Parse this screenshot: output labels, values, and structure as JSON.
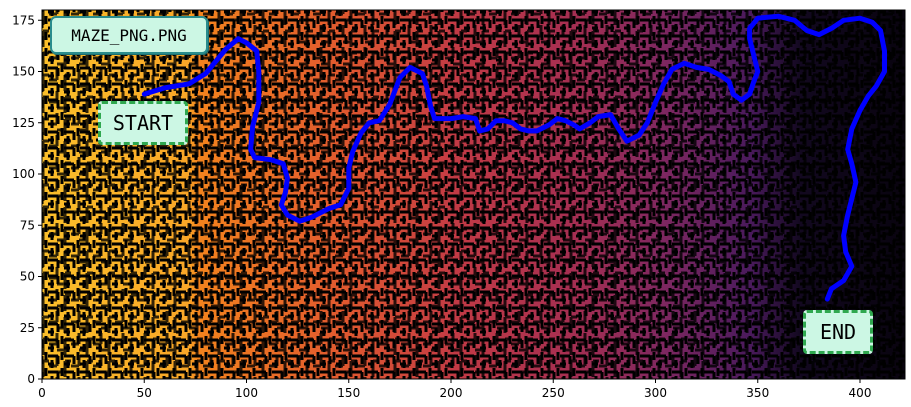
{
  "figure": {
    "title_badge": "MAZE_PNG.PNG",
    "start_label": "START",
    "end_label": "END"
  },
  "chart_data": {
    "type": "heatmap",
    "description_of_content": "maze image with colored cells and solution path",
    "xlim": [
      0,
      422
    ],
    "ylim": [
      0,
      180
    ],
    "x_ticks": [
      0,
      50,
      100,
      150,
      200,
      250,
      300,
      350,
      400
    ],
    "y_ticks": [
      0,
      25,
      50,
      75,
      100,
      125,
      150,
      175
    ],
    "colormap": [
      "#fbbf2a",
      "#f3831d",
      "#d6483a",
      "#b7334b",
      "#8e2a5e",
      "#5e1f66",
      "#2c1450",
      "#0b0617"
    ],
    "path_color": "#0000ff",
    "wall_color": "#000000",
    "solution_path": [
      [
        50,
        139
      ],
      [
        60,
        142
      ],
      [
        72,
        144
      ],
      [
        80,
        149
      ],
      [
        90,
        161
      ],
      [
        96,
        166
      ],
      [
        100,
        164
      ],
      [
        105,
        160
      ],
      [
        106,
        150
      ],
      [
        106,
        135
      ],
      [
        103,
        123
      ],
      [
        102,
        112
      ],
      [
        104,
        108
      ],
      [
        112,
        107
      ],
      [
        118,
        105
      ],
      [
        120,
        98
      ],
      [
        119,
        91
      ],
      [
        117,
        85
      ],
      [
        120,
        80
      ],
      [
        126,
        77
      ],
      [
        132,
        79
      ],
      [
        140,
        83
      ],
      [
        146,
        85
      ],
      [
        150,
        93
      ],
      [
        150,
        103
      ],
      [
        152,
        111
      ],
      [
        156,
        120
      ],
      [
        160,
        125
      ],
      [
        165,
        126
      ],
      [
        170,
        134
      ],
      [
        175,
        147
      ],
      [
        180,
        152
      ],
      [
        186,
        149
      ],
      [
        188,
        143
      ],
      [
        190,
        133
      ],
      [
        192,
        127
      ],
      [
        200,
        127
      ],
      [
        206,
        128
      ],
      [
        212,
        127
      ],
      [
        214,
        121
      ],
      [
        218,
        122
      ],
      [
        222,
        126
      ],
      [
        226,
        126
      ],
      [
        230,
        125
      ],
      [
        234,
        122
      ],
      [
        238,
        121
      ],
      [
        242,
        121
      ],
      [
        248,
        124
      ],
      [
        252,
        127
      ],
      [
        256,
        126
      ],
      [
        260,
        124
      ],
      [
        263,
        122
      ],
      [
        268,
        125
      ],
      [
        272,
        128
      ],
      [
        278,
        129
      ],
      [
        282,
        122
      ],
      [
        286,
        116
      ],
      [
        292,
        119
      ],
      [
        296,
        125
      ],
      [
        300,
        135
      ],
      [
        304,
        144
      ],
      [
        308,
        151
      ],
      [
        314,
        154
      ],
      [
        320,
        152
      ],
      [
        326,
        151
      ],
      [
        332,
        148
      ],
      [
        336,
        145
      ],
      [
        338,
        139
      ],
      [
        342,
        136
      ],
      [
        346,
        139
      ],
      [
        348,
        145
      ],
      [
        350,
        150
      ],
      [
        348,
        158
      ],
      [
        346,
        166
      ],
      [
        346,
        171
      ],
      [
        350,
        176
      ],
      [
        360,
        177
      ],
      [
        368,
        175
      ],
      [
        374,
        170
      ],
      [
        380,
        168
      ],
      [
        386,
        171
      ],
      [
        392,
        175
      ],
      [
        400,
        176
      ],
      [
        406,
        174
      ],
      [
        410,
        170
      ],
      [
        412,
        160
      ],
      [
        412,
        150
      ],
      [
        408,
        143
      ],
      [
        404,
        138
      ],
      [
        400,
        131
      ],
      [
        396,
        122
      ],
      [
        394,
        112
      ],
      [
        396,
        105
      ],
      [
        398,
        96
      ],
      [
        396,
        88
      ],
      [
        394,
        80
      ],
      [
        392,
        70
      ],
      [
        393,
        62
      ],
      [
        396,
        55
      ],
      [
        392,
        48
      ],
      [
        386,
        44
      ],
      [
        384,
        39
      ]
    ]
  }
}
